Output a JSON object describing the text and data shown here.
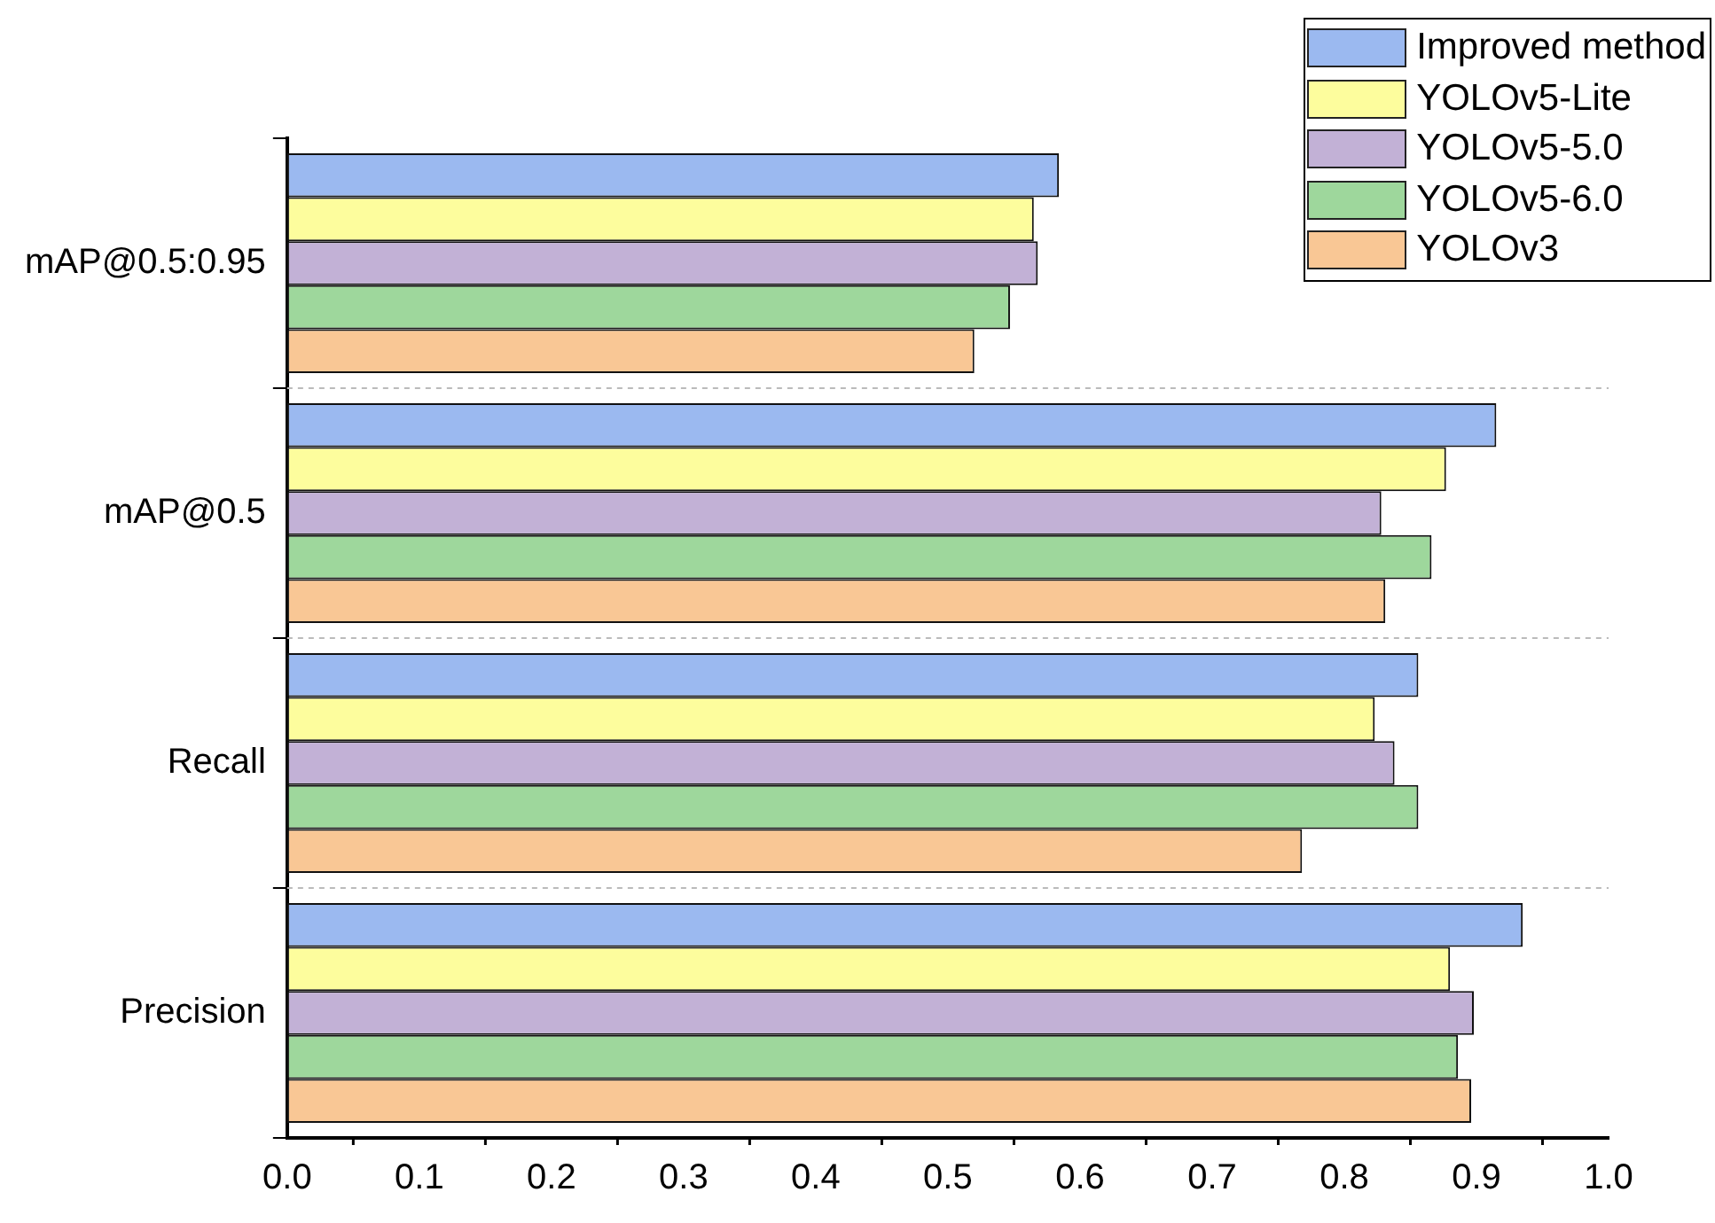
{
  "chart_data": {
    "type": "bar",
    "orientation": "horizontal",
    "categories": [
      "mAP@0.5:0.95",
      "mAP@0.5",
      "Recall",
      "Precision"
    ],
    "series": [
      {
        "name": "Improved method",
        "color": "#9bb9f0",
        "values": [
          0.584,
          0.915,
          0.856,
          0.935
        ]
      },
      {
        "name": "YOLOv5-Lite",
        "color": "#fdfd9d",
        "values": [
          0.565,
          0.877,
          0.823,
          0.88
        ]
      },
      {
        "name": "YOLOv5-5.0",
        "color": "#c2b1d6",
        "values": [
          0.568,
          0.828,
          0.838,
          0.898
        ]
      },
      {
        "name": "YOLOv5-6.0",
        "color": "#9ed79c",
        "values": [
          0.547,
          0.866,
          0.856,
          0.886
        ]
      },
      {
        "name": "YOLOv3",
        "color": "#f9c795",
        "values": [
          0.52,
          0.831,
          0.768,
          0.896
        ]
      }
    ],
    "xlim": [
      0,
      1
    ],
    "xticks": [
      {
        "value": 0,
        "label": "0.0"
      },
      0.1,
      0.2,
      0.3,
      0.4,
      0.5,
      0.6,
      0.7,
      0.8,
      0.9,
      {
        "value": 1,
        "label": "1.0"
      }
    ],
    "grid": "y",
    "legend": "top right"
  }
}
